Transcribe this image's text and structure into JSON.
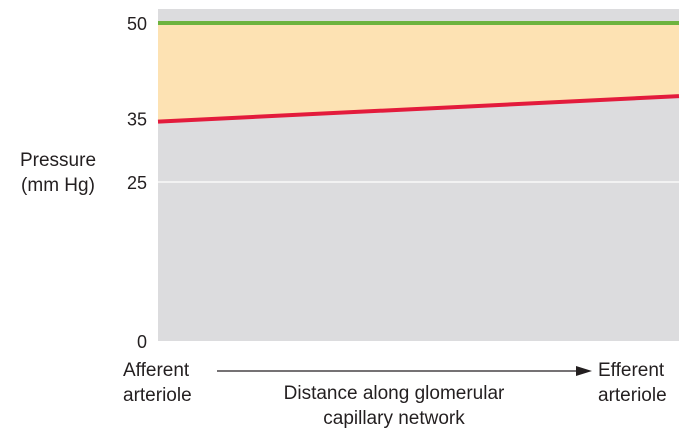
{
  "chart_data": {
    "type": "area",
    "ylabel": [
      "Pressure",
      "(mm Hg)"
    ],
    "xlabel": [
      "Distance along glomerular",
      "capillary network"
    ],
    "x_start_label": [
      "Afferent",
      "arteriole"
    ],
    "x_end_label": [
      "Efferent",
      "arteriole"
    ],
    "ylim": [
      0,
      51
    ],
    "yticks": [
      0,
      25,
      35,
      50
    ],
    "grid": "horizontal at y = 25",
    "x": [
      0,
      1
    ],
    "series": [
      {
        "values": [
          50,
          50
        ],
        "color": "#6db33f"
      },
      {
        "values": [
          34.5,
          38.5
        ],
        "color": "#e31b3c"
      }
    ],
    "fill_between_color": "#fde2b3",
    "fill_below_color": "#dcdcde"
  }
}
